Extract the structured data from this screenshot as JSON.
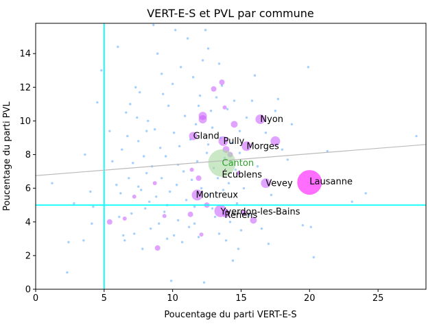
{
  "chart_data": {
    "type": "scatter",
    "title": "VERT-E-S et PVL par commune",
    "xlabel": "Poucentage du parti VERT-E-S",
    "ylabel": "Poucentage du parti PVL",
    "xlim": [
      0,
      28.5
    ],
    "ylim": [
      0,
      15.8
    ],
    "xticks": [
      0,
      5,
      10,
      15,
      20,
      25
    ],
    "yticks": [
      0,
      2,
      4,
      6,
      8,
      10,
      12,
      14
    ],
    "grid": false,
    "colors": {
      "small_points": "#5aa9ff",
      "highlight_points": "#cc66ff",
      "lausanne_point": "#ff55ff",
      "canton_point": "#a8d8a0",
      "threshold_lines": "#00ffff",
      "trend_line": "#bbbbbb",
      "canton_label": "#2ca02c",
      "city_label": "#000000"
    },
    "threshold_lines": {
      "x": 5,
      "y": 5
    },
    "trend_line": {
      "x": [
        0,
        28.5
      ],
      "y": [
        6.75,
        8.6
      ]
    },
    "canton": {
      "label": "Canton",
      "x": 13.6,
      "y": 7.5
    },
    "annotations": [
      {
        "label": "Nyon",
        "x": 16.4,
        "y": 10.1
      },
      {
        "label": "Gland",
        "x": 11.5,
        "y": 9.1
      },
      {
        "label": "Pully",
        "x": 13.7,
        "y": 8.8
      },
      {
        "label": "Morges",
        "x": 15.4,
        "y": 8.5
      },
      {
        "label": "Écublens",
        "x": 13.6,
        "y": 6.8
      },
      {
        "label": "Vevey",
        "x": 16.8,
        "y": 6.3
      },
      {
        "label": "Lausanne",
        "x": 20.0,
        "y": 6.4
      },
      {
        "label": "Montreux",
        "x": 11.7,
        "y": 5.6
      },
      {
        "label": "Yverdon-les-Bains",
        "x": 13.5,
        "y": 4.6
      },
      {
        "label": "Renens",
        "x": 13.8,
        "y": 4.4
      }
    ],
    "highlight_points": [
      {
        "x": 20.0,
        "y": 6.35,
        "s": 18
      },
      {
        "x": 16.4,
        "y": 10.1,
        "s": 7
      },
      {
        "x": 17.5,
        "y": 8.8,
        "s": 7
      },
      {
        "x": 11.5,
        "y": 9.1,
        "s": 6
      },
      {
        "x": 13.7,
        "y": 8.8,
        "s": 7
      },
      {
        "x": 15.4,
        "y": 8.5,
        "s": 7
      },
      {
        "x": 16.8,
        "y": 6.3,
        "s": 7
      },
      {
        "x": 11.8,
        "y": 5.6,
        "s": 8
      },
      {
        "x": 13.5,
        "y": 4.65,
        "s": 9
      },
      {
        "x": 13.9,
        "y": 4.5,
        "s": 6
      },
      {
        "x": 12.2,
        "y": 10.3,
        "s": 6
      },
      {
        "x": 12.2,
        "y": 10.1,
        "s": 6
      },
      {
        "x": 14.5,
        "y": 9.8,
        "s": 5
      },
      {
        "x": 13.9,
        "y": 8.3,
        "s": 5
      },
      {
        "x": 14.2,
        "y": 8.0,
        "s": 4
      },
      {
        "x": 13.6,
        "y": 12.3,
        "s": 4
      },
      {
        "x": 13.0,
        "y": 11.9,
        "s": 4
      },
      {
        "x": 15.9,
        "y": 4.1,
        "s": 5
      },
      {
        "x": 15.2,
        "y": 4.55,
        "s": 4
      },
      {
        "x": 11.3,
        "y": 4.45,
        "s": 4
      },
      {
        "x": 5.4,
        "y": 4.0,
        "s": 4
      },
      {
        "x": 6.5,
        "y": 4.2,
        "s": 3
      },
      {
        "x": 8.9,
        "y": 2.45,
        "s": 4
      },
      {
        "x": 11.9,
        "y": 6.6,
        "s": 4
      },
      {
        "x": 12.5,
        "y": 5.0,
        "s": 4
      },
      {
        "x": 12.1,
        "y": 3.25,
        "s": 3
      },
      {
        "x": 9.4,
        "y": 4.35,
        "s": 3
      },
      {
        "x": 13.8,
        "y": 10.8,
        "s": 3
      },
      {
        "x": 8.7,
        "y": 6.3,
        "s": 3
      },
      {
        "x": 7.2,
        "y": 5.5,
        "s": 3
      },
      {
        "x": 14.8,
        "y": 6.9,
        "s": 3
      },
      {
        "x": 11.4,
        "y": 7.1,
        "s": 3
      }
    ],
    "small_points": [
      [
        2.3,
        1.0
      ],
      [
        2.4,
        2.8
      ],
      [
        2.8,
        5.1
      ],
      [
        3.5,
        2.9
      ],
      [
        3.6,
        8.0
      ],
      [
        4.0,
        5.8
      ],
      [
        4.1,
        3.9
      ],
      [
        4.2,
        4.9
      ],
      [
        4.5,
        11.1
      ],
      [
        4.8,
        13.0
      ],
      [
        5.4,
        9.4
      ],
      [
        5.6,
        7.6
      ],
      [
        5.9,
        6.2
      ],
      [
        6.0,
        14.4
      ],
      [
        6.1,
        4.3
      ],
      [
        6.2,
        5.7
      ],
      [
        6.3,
        8.3
      ],
      [
        6.4,
        3.2
      ],
      [
        6.5,
        2.9
      ],
      [
        6.6,
        10.5
      ],
      [
        6.7,
        9.1
      ],
      [
        6.8,
        6.6
      ],
      [
        6.9,
        11.0
      ],
      [
        7.0,
        4.5
      ],
      [
        7.1,
        7.5
      ],
      [
        7.2,
        3.3
      ],
      [
        7.3,
        12.0
      ],
      [
        7.4,
        10.2
      ],
      [
        7.5,
        8.8
      ],
      [
        7.6,
        11.7
      ],
      [
        7.7,
        5.9
      ],
      [
        7.8,
        2.4
      ],
      [
        7.9,
        7.9
      ],
      [
        8.0,
        4.8
      ],
      [
        8.1,
        6.9
      ],
      [
        8.2,
        10.0
      ],
      [
        8.3,
        5.2
      ],
      [
        8.4,
        3.6
      ],
      [
        8.5,
        7.3
      ],
      [
        8.6,
        15.7
      ],
      [
        8.7,
        9.5
      ],
      [
        8.8,
        5.5
      ],
      [
        8.9,
        14.0
      ],
      [
        9.0,
        3.9
      ],
      [
        9.1,
        8.4
      ],
      [
        9.2,
        6.6
      ],
      [
        9.3,
        11.6
      ],
      [
        9.4,
        4.6
      ],
      [
        9.5,
        7.9
      ],
      [
        9.6,
        3.0
      ],
      [
        9.7,
        10.9
      ],
      [
        9.8,
        5.8
      ],
      [
        9.9,
        0.5
      ],
      [
        10.0,
        12.2
      ],
      [
        10.1,
        9.3
      ],
      [
        10.2,
        15.4
      ],
      [
        10.3,
        6.2
      ],
      [
        10.4,
        4.1
      ],
      [
        10.5,
        8.5
      ],
      [
        10.6,
        13.2
      ],
      [
        10.7,
        2.8
      ],
      [
        10.8,
        7.0
      ],
      [
        10.9,
        10.3
      ],
      [
        11.0,
        5.3
      ],
      [
        11.1,
        14.9
      ],
      [
        11.2,
        3.7
      ],
      [
        11.3,
        8.9
      ],
      [
        11.4,
        6.5
      ],
      [
        11.5,
        12.6
      ],
      [
        11.6,
        4.9
      ],
      [
        11.7,
        9.8
      ],
      [
        11.8,
        7.6
      ],
      [
        11.9,
        3.1
      ],
      [
        12.0,
        11.5
      ],
      [
        12.1,
        6.0
      ],
      [
        12.2,
        13.6
      ],
      [
        12.3,
        0.4
      ],
      [
        12.4,
        15.4
      ],
      [
        12.5,
        8.1
      ],
      [
        12.6,
        14.3
      ],
      [
        12.7,
        5.6
      ],
      [
        12.8,
        10.6
      ],
      [
        12.9,
        9.6
      ],
      [
        13.0,
        7.2
      ],
      [
        13.1,
        4.3
      ],
      [
        13.2,
        11.4
      ],
      [
        13.3,
        6.6
      ],
      [
        13.4,
        3.3
      ],
      [
        13.5,
        9.0
      ],
      [
        13.6,
        12.1
      ],
      [
        13.7,
        5.9
      ],
      [
        13.8,
        7.8
      ],
      [
        13.9,
        2.9
      ],
      [
        14.0,
        10.7
      ],
      [
        14.1,
        6.3
      ],
      [
        14.2,
        4.0
      ],
      [
        14.3,
        8.7
      ],
      [
        14.4,
        1.7
      ],
      [
        14.5,
        11.2
      ],
      [
        14.6,
        7.1
      ],
      [
        14.7,
        5.1
      ],
      [
        14.8,
        2.4
      ],
      [
        14.9,
        9.4
      ],
      [
        15.0,
        3.5
      ],
      [
        15.2,
        6.0
      ],
      [
        15.4,
        10.2
      ],
      [
        15.6,
        4.4
      ],
      [
        15.8,
        11.2
      ],
      [
        16.0,
        12.7
      ],
      [
        16.2,
        7.3
      ],
      [
        16.5,
        3.6
      ],
      [
        16.8,
        9.3
      ],
      [
        17.0,
        2.7
      ],
      [
        17.2,
        5.6
      ],
      [
        17.5,
        10.6
      ],
      [
        17.7,
        11.3
      ],
      [
        18.0,
        8.3
      ],
      [
        18.4,
        7.7
      ],
      [
        18.7,
        9.8
      ],
      [
        19.5,
        3.8
      ],
      [
        19.9,
        13.2
      ],
      [
        20.1,
        3.7
      ],
      [
        20.3,
        1.9
      ],
      [
        21.3,
        8.2
      ],
      [
        23.1,
        5.2
      ],
      [
        24.1,
        5.7
      ],
      [
        27.8,
        9.1
      ],
      [
        1.2,
        6.3
      ],
      [
        10.1,
        3.2
      ],
      [
        11.6,
        3.9
      ],
      [
        12.9,
        4.8
      ],
      [
        9.6,
        5.0
      ],
      [
        8.1,
        9.4
      ],
      [
        10.4,
        7.4
      ],
      [
        7.5,
        6.1
      ],
      [
        11.9,
        10.9
      ],
      [
        12.6,
        8.6
      ],
      [
        9.2,
        12.8
      ],
      [
        13.4,
        13.4
      ],
      [
        14.9,
        8.1
      ]
    ]
  }
}
